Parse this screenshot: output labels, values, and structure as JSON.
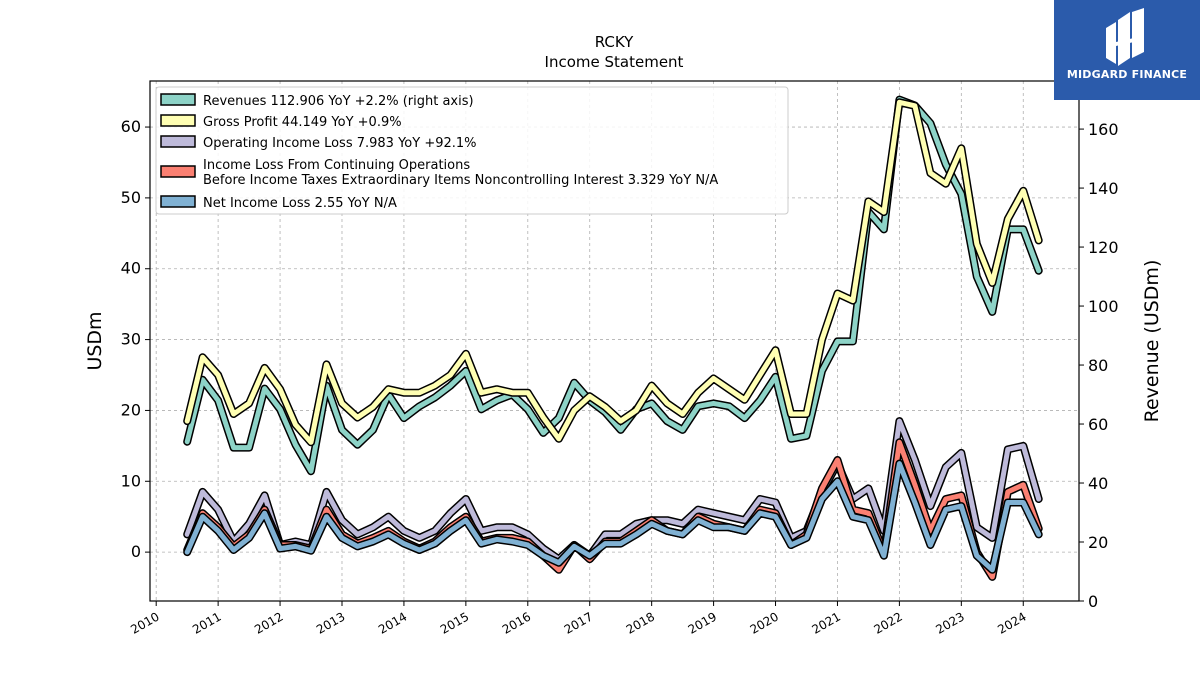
{
  "brand": {
    "name": "MIDGARD FINANCE",
    "color": "#2b5bab"
  },
  "chart_data": {
    "type": "line",
    "title": "RCKY",
    "subtitle": "Income Statement",
    "ylabel_left": "USDm",
    "ylabel_right": "Revenue (USDm)",
    "ylim_left": [
      -6.9,
      66.5
    ],
    "ylim_right": [
      0,
      176.3
    ],
    "yticks_left": [
      0,
      10,
      20,
      30,
      40,
      50,
      60
    ],
    "yticks_right": [
      0,
      20,
      40,
      60,
      80,
      100,
      120,
      140,
      160
    ],
    "xlim": [
      2009.9,
      2024.9
    ],
    "xticks": [
      2010,
      2011,
      2012,
      2013,
      2014,
      2015,
      2016,
      2017,
      2018,
      2019,
      2020,
      2021,
      2022,
      2023,
      2024
    ],
    "grid": true,
    "legend_position": "top-left",
    "series": [
      {
        "name": "Revenues  112.906 YoY +2.2% (right axis)",
        "axis": "right",
        "color": "#8dd3c7",
        "points": [
          [
            2010.5,
            54
          ],
          [
            2010.75,
            75
          ],
          [
            2011.0,
            68
          ],
          [
            2011.25,
            52
          ],
          [
            2011.5,
            52
          ],
          [
            2011.75,
            72
          ],
          [
            2012.0,
            65
          ],
          [
            2012.25,
            53
          ],
          [
            2012.5,
            44
          ],
          [
            2012.75,
            73
          ],
          [
            2013.0,
            58
          ],
          [
            2013.25,
            53
          ],
          [
            2013.5,
            58
          ],
          [
            2013.75,
            70
          ],
          [
            2014.0,
            62
          ],
          [
            2014.25,
            66
          ],
          [
            2014.5,
            69
          ],
          [
            2014.75,
            73
          ],
          [
            2015.0,
            78
          ],
          [
            2015.25,
            65
          ],
          [
            2015.5,
            68
          ],
          [
            2015.75,
            70
          ],
          [
            2016.0,
            65
          ],
          [
            2016.25,
            57
          ],
          [
            2016.5,
            62
          ],
          [
            2016.75,
            74
          ],
          [
            2017.0,
            68
          ],
          [
            2017.25,
            64
          ],
          [
            2017.5,
            58
          ],
          [
            2017.75,
            65
          ],
          [
            2018.0,
            67
          ],
          [
            2018.25,
            61
          ],
          [
            2018.5,
            58
          ],
          [
            2018.75,
            66
          ],
          [
            2019.0,
            67
          ],
          [
            2019.25,
            66
          ],
          [
            2019.5,
            62
          ],
          [
            2019.75,
            68
          ],
          [
            2020.0,
            76
          ],
          [
            2020.25,
            55
          ],
          [
            2020.5,
            56
          ],
          [
            2020.75,
            78
          ],
          [
            2021.0,
            88
          ],
          [
            2021.25,
            88
          ],
          [
            2021.5,
            132
          ],
          [
            2021.75,
            126
          ],
          [
            2022.0,
            170
          ],
          [
            2022.25,
            168
          ],
          [
            2022.5,
            162
          ],
          [
            2022.75,
            148
          ],
          [
            2023.0,
            138
          ],
          [
            2023.25,
            110
          ],
          [
            2023.5,
            98
          ],
          [
            2023.75,
            126
          ],
          [
            2024.0,
            126
          ],
          [
            2024.25,
            112
          ]
        ]
      },
      {
        "name": "Gross Profit  44.149 YoY +0.9%",
        "axis": "left",
        "color": "#ffffb3",
        "points": [
          [
            2010.5,
            18.5
          ],
          [
            2010.75,
            27.5
          ],
          [
            2011.0,
            25
          ],
          [
            2011.25,
            19.5
          ],
          [
            2011.5,
            21
          ],
          [
            2011.75,
            26
          ],
          [
            2012.0,
            23
          ],
          [
            2012.25,
            18
          ],
          [
            2012.5,
            15.5
          ],
          [
            2012.75,
            26.5
          ],
          [
            2013.0,
            21
          ],
          [
            2013.25,
            19
          ],
          [
            2013.5,
            20.5
          ],
          [
            2013.75,
            23
          ],
          [
            2014.0,
            22.5
          ],
          [
            2014.25,
            22.5
          ],
          [
            2014.5,
            23.5
          ],
          [
            2014.75,
            25
          ],
          [
            2015.0,
            28
          ],
          [
            2015.25,
            22.5
          ],
          [
            2015.5,
            23
          ],
          [
            2015.75,
            22.5
          ],
          [
            2016.0,
            22.5
          ],
          [
            2016.25,
            19
          ],
          [
            2016.5,
            16
          ],
          [
            2016.75,
            20
          ],
          [
            2017.0,
            22
          ],
          [
            2017.25,
            20.5
          ],
          [
            2017.5,
            18.5
          ],
          [
            2017.75,
            20
          ],
          [
            2018.0,
            23.5
          ],
          [
            2018.25,
            21
          ],
          [
            2018.5,
            19.5
          ],
          [
            2018.75,
            22.5
          ],
          [
            2019.0,
            24.5
          ],
          [
            2019.25,
            23
          ],
          [
            2019.5,
            21.5
          ],
          [
            2019.75,
            25
          ],
          [
            2020.0,
            28.5
          ],
          [
            2020.25,
            19.5
          ],
          [
            2020.5,
            19.5
          ],
          [
            2020.75,
            30
          ],
          [
            2021.0,
            36.5
          ],
          [
            2021.25,
            35.5
          ],
          [
            2021.5,
            49.5
          ],
          [
            2021.75,
            48
          ],
          [
            2022.0,
            63.5
          ],
          [
            2022.25,
            63
          ],
          [
            2022.5,
            53.5
          ],
          [
            2022.75,
            52
          ],
          [
            2023.0,
            57
          ],
          [
            2023.25,
            43.5
          ],
          [
            2023.5,
            38
          ],
          [
            2023.75,
            47
          ],
          [
            2024.0,
            51
          ],
          [
            2024.25,
            44
          ]
        ]
      },
      {
        "name": "Operating Income Loss  7.983 YoY +92.1%",
        "axis": "left",
        "color": "#bebada",
        "points": [
          [
            2010.5,
            2.5
          ],
          [
            2010.75,
            8.5
          ],
          [
            2011.0,
            6
          ],
          [
            2011.25,
            1.5
          ],
          [
            2011.5,
            4
          ],
          [
            2011.75,
            8
          ],
          [
            2012.0,
            1
          ],
          [
            2012.25,
            1.5
          ],
          [
            2012.5,
            1
          ],
          [
            2012.75,
            8.5
          ],
          [
            2013.0,
            4.5
          ],
          [
            2013.25,
            2.5
          ],
          [
            2013.5,
            3.5
          ],
          [
            2013.75,
            5
          ],
          [
            2014.0,
            3
          ],
          [
            2014.25,
            2
          ],
          [
            2014.5,
            3
          ],
          [
            2014.75,
            5.5
          ],
          [
            2015.0,
            7.5
          ],
          [
            2015.25,
            3
          ],
          [
            2015.5,
            3.5
          ],
          [
            2015.75,
            3.5
          ],
          [
            2016.0,
            2.5
          ],
          [
            2016.25,
            0.5
          ],
          [
            2016.5,
            -1
          ],
          [
            2016.75,
            1
          ],
          [
            2017.0,
            -0.5
          ],
          [
            2017.25,
            2.5
          ],
          [
            2017.5,
            2.5
          ],
          [
            2017.75,
            4
          ],
          [
            2018.0,
            4.5
          ],
          [
            2018.25,
            4.5
          ],
          [
            2018.5,
            4
          ],
          [
            2018.75,
            6
          ],
          [
            2019.0,
            5.5
          ],
          [
            2019.25,
            5
          ],
          [
            2019.5,
            4.5
          ],
          [
            2019.75,
            7.5
          ],
          [
            2020.0,
            7
          ],
          [
            2020.25,
            2
          ],
          [
            2020.5,
            3
          ],
          [
            2020.75,
            8.5
          ],
          [
            2021.0,
            12.5
          ],
          [
            2021.25,
            7.5
          ],
          [
            2021.5,
            9
          ],
          [
            2021.75,
            3
          ],
          [
            2022.0,
            18.5
          ],
          [
            2022.25,
            13
          ],
          [
            2022.5,
            6.5
          ],
          [
            2022.75,
            12
          ],
          [
            2023.0,
            14
          ],
          [
            2023.25,
            3.5
          ],
          [
            2023.5,
            2
          ],
          [
            2023.75,
            14.5
          ],
          [
            2024.0,
            15
          ],
          [
            2024.25,
            7.5
          ]
        ]
      },
      {
        "name": "Income Loss From Continuing Operations|Before Income Taxes Extraordinary Items Noncontrolling Interest  3.329 YoY N/A",
        "axis": "left",
        "color": "#fb8072",
        "points": [
          [
            2010.5,
            0.3
          ],
          [
            2010.75,
            5.5
          ],
          [
            2011.0,
            3.5
          ],
          [
            2011.25,
            0.8
          ],
          [
            2011.5,
            2.5
          ],
          [
            2011.75,
            6
          ],
          [
            2012.0,
            1
          ],
          [
            2012.25,
            1
          ],
          [
            2012.5,
            0.5
          ],
          [
            2012.75,
            6
          ],
          [
            2013.0,
            2.5
          ],
          [
            2013.25,
            1.2
          ],
          [
            2013.5,
            2
          ],
          [
            2013.75,
            3
          ],
          [
            2014.0,
            1.5
          ],
          [
            2014.25,
            0.5
          ],
          [
            2014.5,
            1.5
          ],
          [
            2014.75,
            3.5
          ],
          [
            2015.0,
            5
          ],
          [
            2015.25,
            1.5
          ],
          [
            2015.5,
            2
          ],
          [
            2015.75,
            2
          ],
          [
            2016.0,
            1.5
          ],
          [
            2016.25,
            -0.5
          ],
          [
            2016.5,
            -2.5
          ],
          [
            2016.75,
            1
          ],
          [
            2017.0,
            -1
          ],
          [
            2017.25,
            1.5
          ],
          [
            2017.5,
            1.5
          ],
          [
            2017.75,
            3
          ],
          [
            2018.0,
            4.5
          ],
          [
            2018.25,
            3
          ],
          [
            2018.5,
            2.5
          ],
          [
            2018.75,
            5
          ],
          [
            2019.0,
            4
          ],
          [
            2019.25,
            3.5
          ],
          [
            2019.5,
            3
          ],
          [
            2019.75,
            6
          ],
          [
            2020.0,
            5.5
          ],
          [
            2020.25,
            1
          ],
          [
            2020.5,
            2.5
          ],
          [
            2020.75,
            9
          ],
          [
            2021.0,
            13
          ],
          [
            2021.25,
            6
          ],
          [
            2021.5,
            5.5
          ],
          [
            2021.75,
            0
          ],
          [
            2022.0,
            15.5
          ],
          [
            2022.25,
            9.5
          ],
          [
            2022.5,
            3
          ],
          [
            2022.75,
            7.5
          ],
          [
            2023.0,
            8
          ],
          [
            2023.25,
            0
          ],
          [
            2023.5,
            -3.5
          ],
          [
            2023.75,
            8.5
          ],
          [
            2024.0,
            9.5
          ],
          [
            2024.25,
            3.3
          ]
        ]
      },
      {
        "name": "Net Income Loss  2.55 YoY N/A",
        "axis": "left",
        "color": "#80b1d3",
        "points": [
          [
            2010.5,
            0
          ],
          [
            2010.75,
            5
          ],
          [
            2011.0,
            3
          ],
          [
            2011.25,
            0.3
          ],
          [
            2011.5,
            2
          ],
          [
            2011.75,
            5.5
          ],
          [
            2012.0,
            0.5
          ],
          [
            2012.25,
            0.8
          ],
          [
            2012.5,
            0.2
          ],
          [
            2012.75,
            5
          ],
          [
            2013.0,
            2
          ],
          [
            2013.25,
            0.8
          ],
          [
            2013.5,
            1.5
          ],
          [
            2013.75,
            2.5
          ],
          [
            2014.0,
            1.2
          ],
          [
            2014.25,
            0.3
          ],
          [
            2014.5,
            1.2
          ],
          [
            2014.75,
            3
          ],
          [
            2015.0,
            4.5
          ],
          [
            2015.25,
            1.2
          ],
          [
            2015.5,
            1.8
          ],
          [
            2015.75,
            1.5
          ],
          [
            2016.0,
            1
          ],
          [
            2016.25,
            -0.5
          ],
          [
            2016.5,
            -1.5
          ],
          [
            2016.75,
            0.8
          ],
          [
            2017.0,
            -0.5
          ],
          [
            2017.25,
            1.2
          ],
          [
            2017.5,
            1.2
          ],
          [
            2017.75,
            2.5
          ],
          [
            2018.0,
            4
          ],
          [
            2018.25,
            3
          ],
          [
            2018.5,
            2.5
          ],
          [
            2018.75,
            4.5
          ],
          [
            2019.0,
            3.5
          ],
          [
            2019.25,
            3.5
          ],
          [
            2019.5,
            3
          ],
          [
            2019.75,
            5.5
          ],
          [
            2020.0,
            5
          ],
          [
            2020.25,
            1
          ],
          [
            2020.5,
            2
          ],
          [
            2020.75,
            7.5
          ],
          [
            2021.0,
            10
          ],
          [
            2021.25,
            5
          ],
          [
            2021.5,
            4.5
          ],
          [
            2021.75,
            -0.5
          ],
          [
            2022.0,
            12.5
          ],
          [
            2022.25,
            7
          ],
          [
            2022.5,
            1
          ],
          [
            2022.75,
            6
          ],
          [
            2023.0,
            6.5
          ],
          [
            2023.25,
            -0.5
          ],
          [
            2023.5,
            -2.5
          ],
          [
            2023.75,
            7
          ],
          [
            2024.0,
            7
          ],
          [
            2024.25,
            2.5
          ]
        ]
      }
    ]
  }
}
